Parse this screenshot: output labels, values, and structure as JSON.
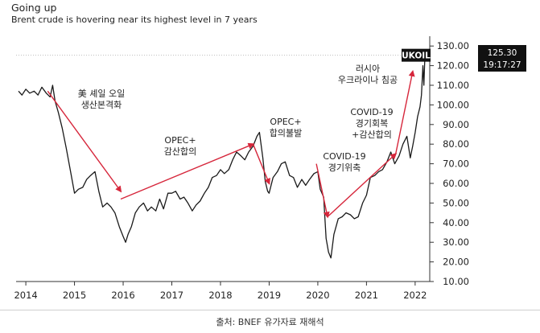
{
  "header": {
    "title": "Going up",
    "subtitle": "Brent crude is hovering near its highest level in 7 years"
  },
  "source": "출처: BNEF 유가자료 재해석",
  "colors": {
    "line": "#1a1a1a",
    "arrow": "#d6263b",
    "axis": "#333333",
    "badge": "#111111",
    "grid": "#bdbdbd"
  },
  "ticker": {
    "symbol": "UKOIL",
    "price": "125.30",
    "time": "19:17:27"
  },
  "chart_data": {
    "type": "line",
    "title": "Going up",
    "subtitle": "Brent crude is hovering near its highest level in 7 years",
    "xlabel": "",
    "ylabel": "",
    "xlim": [
      2013.8,
      2022.3
    ],
    "ylim": [
      10,
      135
    ],
    "x_ticks": [
      "2014",
      "2015",
      "2016",
      "2017",
      "2018",
      "2019",
      "2020",
      "2021",
      "2022"
    ],
    "y_ticks": [
      "10.00",
      "20.00",
      "30.00",
      "40.00",
      "50.00",
      "60.00",
      "70.00",
      "80.00",
      "90.00",
      "100.00",
      "110.00",
      "120.00",
      "130.00"
    ],
    "reference_line": 125.3,
    "series": [
      {
        "x": [
          2013.85,
          2013.92,
          2014.0,
          2014.08,
          2014.17,
          2014.25,
          2014.33,
          2014.42,
          2014.5,
          2014.55,
          2014.6,
          2014.67,
          2014.75,
          2014.83,
          2014.92,
          2015.0,
          2015.08,
          2015.17,
          2015.25,
          2015.33,
          2015.42,
          2015.5,
          2015.58,
          2015.67,
          2015.75,
          2015.83,
          2015.92,
          2016.0,
          2016.05,
          2016.1,
          2016.17,
          2016.25,
          2016.33,
          2016.42,
          2016.5,
          2016.58,
          2016.67,
          2016.75,
          2016.83,
          2016.92,
          2017.0,
          2017.08,
          2017.17,
          2017.25,
          2017.33,
          2017.42,
          2017.5,
          2017.58,
          2017.67,
          2017.75,
          2017.83,
          2017.92,
          2018.0,
          2018.08,
          2018.17,
          2018.25,
          2018.33,
          2018.42,
          2018.5,
          2018.58,
          2018.67,
          2018.75,
          2018.8,
          2018.87,
          2018.92,
          2018.97,
          2019.0,
          2019.08,
          2019.17,
          2019.25,
          2019.33,
          2019.42,
          2019.5,
          2019.58,
          2019.67,
          2019.75,
          2019.83,
          2019.92,
          2020.0,
          2020.05,
          2020.12,
          2020.17,
          2020.22,
          2020.27,
          2020.33,
          2020.42,
          2020.5,
          2020.58,
          2020.67,
          2020.75,
          2020.83,
          2020.92,
          2021.0,
          2021.08,
          2021.17,
          2021.25,
          2021.33,
          2021.42,
          2021.5,
          2021.58,
          2021.67,
          2021.75,
          2021.83,
          2021.9,
          2021.95,
          2022.0,
          2022.05,
          2022.1,
          2022.13,
          2022.16,
          2022.18,
          2022.2
        ],
        "values": [
          107,
          105,
          108,
          106,
          107,
          105,
          109,
          106,
          104,
          110,
          102,
          96,
          88,
          78,
          66,
          55,
          57,
          58,
          62,
          64,
          66,
          56,
          48,
          50,
          48,
          45,
          38,
          33,
          30,
          34,
          38,
          45,
          48,
          50,
          46,
          48,
          46,
          52,
          47,
          55,
          55,
          56,
          52,
          53,
          50,
          46,
          49,
          51,
          55,
          58,
          63,
          64,
          67,
          65,
          67,
          72,
          76,
          74,
          72,
          76,
          79,
          84,
          86,
          73,
          61,
          56,
          55,
          63,
          66,
          70,
          71,
          64,
          63,
          58,
          62,
          59,
          62,
          65,
          66,
          57,
          53,
          32,
          25,
          22,
          34,
          42,
          43,
          45,
          44,
          42,
          43,
          50,
          54,
          63,
          64,
          66,
          67,
          71,
          76,
          70,
          74,
          80,
          84,
          73,
          79,
          86,
          94,
          99,
          105,
          120,
          110,
          125
        ]
      }
    ],
    "annotations": [
      {
        "text": "美 셰일 오일\n생산본격화",
        "from": [
          2014.45,
          107
        ],
        "to": [
          2015.95,
          56
        ]
      },
      {
        "text": "OPEC+\n감산합의",
        "from": [
          2015.95,
          52
        ],
        "to": [
          2018.67,
          80
        ]
      },
      {
        "text": "OPEC+\n합의불발",
        "from": [
          2018.67,
          80
        ],
        "to": [
          2019.0,
          60
        ]
      },
      {
        "text": "COVID-19\n경기위축",
        "from": [
          2019.97,
          70
        ],
        "to": [
          2020.2,
          43
        ]
      },
      {
        "text": "COVID-19\n경기회복\n+감산합의",
        "from": [
          2020.2,
          43
        ],
        "to": [
          2021.6,
          75
        ]
      },
      {
        "text": "러시아\n우크라이나 침공",
        "from": [
          2021.6,
          75
        ],
        "to": [
          2021.95,
          117
        ]
      }
    ]
  }
}
